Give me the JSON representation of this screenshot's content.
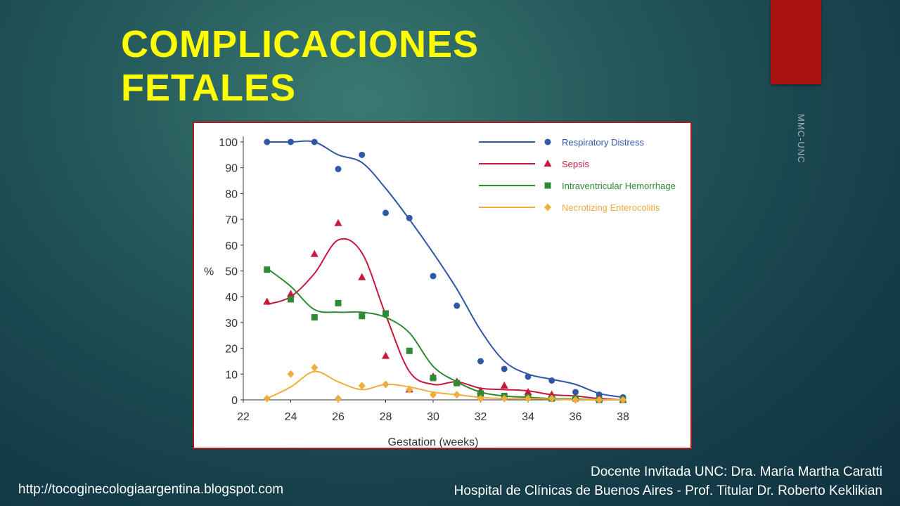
{
  "slide": {
    "title_line1": "COMPLICACIONES",
    "title_line2": "FETALES",
    "side_tag": "MMC-UNC",
    "footer_url": "http://tocoginecologiaargentina.blogspot.com",
    "credit_line1": "Docente Invitada UNC: Dra. María Martha Caratti",
    "credit_line2": "Hospital de Clínicas de Buenos Aires - Prof. Titular Dr. Roberto Keklikian"
  },
  "chart_data": {
    "type": "scatter",
    "xlabel": "Gestation (weeks)",
    "ylabel": "%",
    "xlim": [
      22,
      38
    ],
    "ylim": [
      0,
      100
    ],
    "x_ticks": [
      22,
      24,
      26,
      28,
      30,
      32,
      34,
      36,
      38
    ],
    "y_ticks": [
      0,
      10,
      20,
      30,
      40,
      50,
      60,
      70,
      80,
      90,
      100
    ],
    "legend_position": "top-right",
    "series": [
      {
        "name": "Respiratory Distress",
        "color": "#2f58a6",
        "marker": "circle",
        "points": [
          [
            23,
            100
          ],
          [
            24,
            100
          ],
          [
            25,
            100
          ],
          [
            26,
            89.5
          ],
          [
            27,
            95
          ],
          [
            28,
            72.5
          ],
          [
            29,
            70.5
          ],
          [
            30,
            48
          ],
          [
            31,
            36.5
          ],
          [
            32,
            15
          ],
          [
            33,
            12
          ],
          [
            34,
            9
          ],
          [
            35,
            7.5
          ],
          [
            36,
            3
          ],
          [
            37,
            2
          ],
          [
            38,
            1
          ]
        ],
        "curve": [
          [
            23,
            100
          ],
          [
            24,
            100
          ],
          [
            25,
            100
          ],
          [
            26,
            95
          ],
          [
            27,
            92
          ],
          [
            28,
            82
          ],
          [
            29,
            70
          ],
          [
            30,
            57
          ],
          [
            31,
            43
          ],
          [
            32,
            27
          ],
          [
            33,
            15
          ],
          [
            34,
            10
          ],
          [
            35,
            8
          ],
          [
            36,
            6
          ],
          [
            37,
            2.5
          ],
          [
            38,
            1
          ]
        ]
      },
      {
        "name": "Sepsis",
        "color": "#c8193c",
        "marker": "triangle",
        "points": [
          [
            23,
            38
          ],
          [
            24,
            41
          ],
          [
            25,
            56.5
          ],
          [
            26,
            68.5
          ],
          [
            27,
            47.5
          ],
          [
            28,
            17
          ],
          [
            29,
            4
          ],
          [
            30,
            9
          ],
          [
            31,
            7
          ],
          [
            32,
            3.5
          ],
          [
            33,
            5.5
          ],
          [
            34,
            3
          ],
          [
            35,
            2
          ],
          [
            36,
            1
          ],
          [
            37,
            0.5
          ],
          [
            38,
            0
          ]
        ],
        "curve": [
          [
            23,
            37
          ],
          [
            24,
            40
          ],
          [
            25,
            49
          ],
          [
            26,
            62
          ],
          [
            27,
            57
          ],
          [
            28,
            33
          ],
          [
            29,
            11
          ],
          [
            30,
            6
          ],
          [
            31,
            7
          ],
          [
            32,
            4.5
          ],
          [
            33,
            4
          ],
          [
            34,
            3.5
          ],
          [
            35,
            2
          ],
          [
            36,
            1.5
          ],
          [
            37,
            0.5
          ],
          [
            38,
            0
          ]
        ]
      },
      {
        "name": "Intraventricular Hemorrhage",
        "color": "#2f8a36",
        "marker": "square",
        "points": [
          [
            23,
            50.5
          ],
          [
            24,
            39
          ],
          [
            25,
            32
          ],
          [
            26,
            37.5
          ],
          [
            27,
            32.5
          ],
          [
            28,
            33.5
          ],
          [
            29,
            19
          ],
          [
            30,
            8.5
          ],
          [
            31,
            6.5
          ],
          [
            32,
            2.5
          ],
          [
            33,
            1.5
          ],
          [
            34,
            1
          ],
          [
            35,
            0.5
          ],
          [
            36,
            0.5
          ],
          [
            37,
            0
          ],
          [
            38,
            0
          ]
        ],
        "curve": [
          [
            23,
            51
          ],
          [
            24,
            44
          ],
          [
            25,
            35
          ],
          [
            26,
            34
          ],
          [
            27,
            34
          ],
          [
            28,
            32
          ],
          [
            29,
            26
          ],
          [
            30,
            13
          ],
          [
            31,
            7
          ],
          [
            32,
            3
          ],
          [
            33,
            1.5
          ],
          [
            34,
            1
          ],
          [
            35,
            0.5
          ],
          [
            36,
            0.3
          ],
          [
            37,
            0
          ],
          [
            38,
            0
          ]
        ]
      },
      {
        "name": "Necrotizing Enterocolitis",
        "color": "#f0ad3e",
        "marker": "diamond",
        "points": [
          [
            23,
            0.5
          ],
          [
            24,
            10
          ],
          [
            25,
            12.5
          ],
          [
            26,
            0.5
          ],
          [
            27,
            5.5
          ],
          [
            28,
            6
          ],
          [
            29,
            4
          ],
          [
            30,
            2
          ],
          [
            31,
            2
          ],
          [
            32,
            0.5
          ],
          [
            33,
            0.5
          ],
          [
            34,
            0.5
          ],
          [
            35,
            0.5
          ],
          [
            36,
            0
          ],
          [
            37,
            0
          ],
          [
            38,
            0
          ]
        ],
        "curve": [
          [
            23,
            0.5
          ],
          [
            24,
            5
          ],
          [
            25,
            11
          ],
          [
            26,
            7
          ],
          [
            27,
            4
          ],
          [
            28,
            6
          ],
          [
            29,
            5
          ],
          [
            30,
            3
          ],
          [
            31,
            2
          ],
          [
            32,
            1
          ],
          [
            33,
            0.5
          ],
          [
            34,
            0.5
          ],
          [
            35,
            0.3
          ],
          [
            36,
            0
          ],
          [
            37,
            0
          ],
          [
            38,
            0
          ]
        ]
      }
    ]
  }
}
